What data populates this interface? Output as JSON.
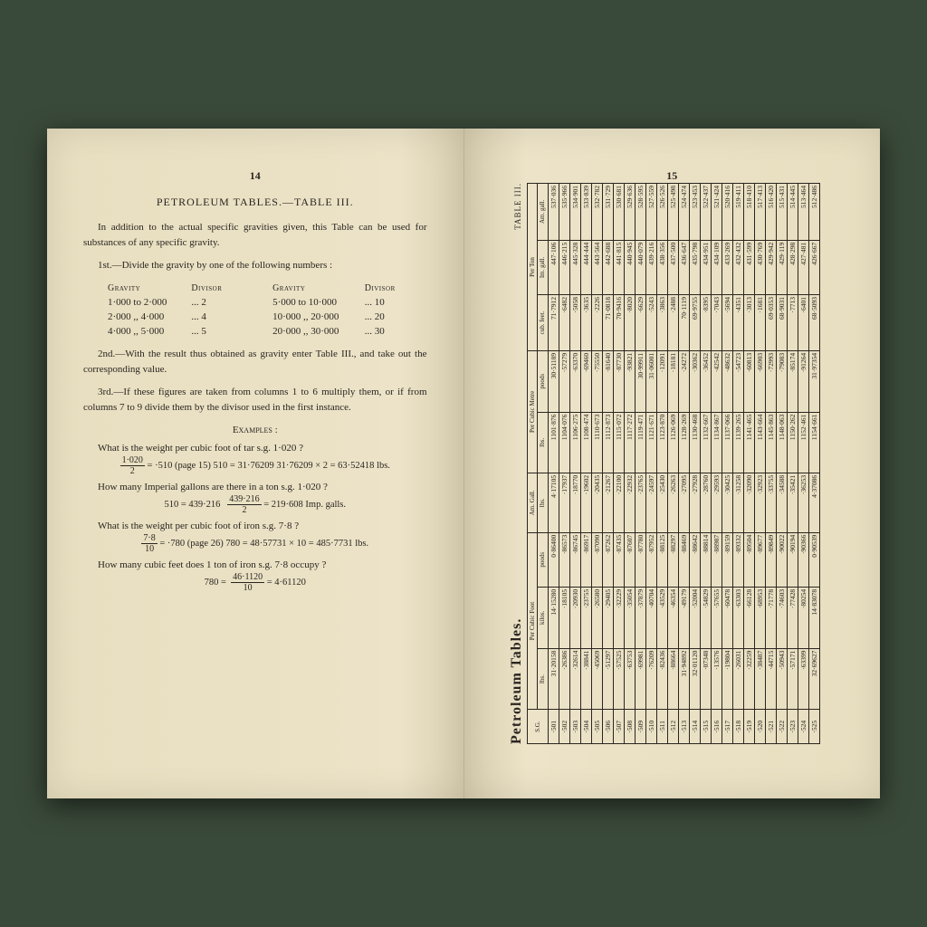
{
  "left_page": {
    "page_number": "14",
    "title": "PETROLEUM TABLES.—TABLE III.",
    "intro": "In addition to the actual specific gravities given, this Table can be used for substances of any specific gravity.",
    "step1": "1st.—Divide the gravity by one of the following numbers :",
    "divisor_head": {
      "g": "Gravity",
      "d": "Divisor"
    },
    "divisors": [
      {
        "g1": "1·000 to 2·000",
        "d1": "2",
        "g2": "5·000 to 10·000",
        "d2": "10"
      },
      {
        "g1": "2·000  ,,  4·000",
        "d1": "4",
        "g2": "10·000  ,,  20·000",
        "d2": "20"
      },
      {
        "g1": "4·000  ,,  5·000",
        "d1": "5",
        "g2": "20·000  ,,  30·000",
        "d2": "30"
      }
    ],
    "step2": "2nd.—With the result thus obtained as gravity enter Table III., and take out the corresponding value.",
    "step3": "3rd.—If these figures are taken from columns 1 to 6 multiply them, or if from columns 7 to 9 divide them by the divisor used in the first instance.",
    "examples_head": "Examples :",
    "ex1_q": "What is the weight per cubic foot of tar s.g. 1·020 ?",
    "ex1_calc": "= ·510 (page 15)   510 = 31·76209   31·76209 × 2 = 63·52418 lbs.",
    "ex1_frac_num": "1·020",
    "ex1_frac_den": "2",
    "ex2_q": "How many Imperial gallons are there in a ton s.g. 1·020 ?",
    "ex2_calc": "510 = 439·216",
    "ex2_frac_num": "439·216",
    "ex2_frac_den": "2",
    "ex2_result": "= 219·608 Imp. galls.",
    "ex3_q": "What is the weight per cubic foot of iron s.g. 7·8 ?",
    "ex3_frac_num": "7·8",
    "ex3_frac_den": "10",
    "ex3_calc": "= ·780   (page 26)   780 = 48·57731 × 10 = 485·7731 lbs.",
    "ex4_q": "How many cubic feet does 1 ton of iron s.g. 7·8 occupy ?",
    "ex4_calc": "780 =",
    "ex4_frac_num": "46·1120",
    "ex4_frac_den": "10",
    "ex4_result": "= 4·61120"
  },
  "right_page": {
    "page_number": "15",
    "table_title": "Petroleum Tables.",
    "table_sub": "TABLE III.",
    "headers_top": [
      "S.G.",
      "Per Cubic Foot",
      "Am. Gall.",
      "Per Cubic Metre",
      "Per Ton"
    ],
    "headers_sub": [
      "",
      "lbs.",
      "kilos.",
      "poods",
      "lbs.",
      "lbs.",
      "poods",
      "cub. feet.",
      "Im. gall.",
      "Am. gall."
    ],
    "rows": [
      [
        "·501",
        "31·20158",
        "14·15280",
        "0·86400",
        "4·17105",
        "1101·876",
        "30·51189",
        "71·7912",
        "447·106",
        "537·036"
      ],
      [
        "·502",
        "·26386",
        "·18105",
        "·86573",
        "·17937",
        "1104·076",
        "·57279",
        "·6482",
        "446·215",
        "535·966"
      ],
      [
        "·503",
        "·32614",
        "·20930",
        "·86745",
        "·18770",
        "1106·275",
        "·63370",
        "·5058",
        "445·328",
        "534·901"
      ],
      [
        "·504",
        "·38841",
        "·23755",
        "·86917",
        "·19602",
        "1108·474",
        "·69460",
        "·3635",
        "444·444",
        "533·839"
      ],
      [
        "·505",
        "·45069",
        "·26580",
        "·87090",
        "·20435",
        "1110·673",
        "·75550",
        "·2226",
        "443·564",
        "532·782"
      ],
      [
        "·506",
        "·51297",
        "·29405",
        "·87262",
        "·21267",
        "1112·873",
        "·81640",
        "71·0818",
        "442·688",
        "531·729"
      ],
      [
        "·507",
        "·57525",
        "·32229",
        "·87435",
        "·22100",
        "1115·072",
        "·87730",
        "70·9416",
        "441·815",
        "530·681"
      ],
      [
        "·508",
        "·63753",
        "·35054",
        "·87607",
        "·22932",
        "1117·272",
        "·93821",
        "·8020",
        "440·945",
        "529·636"
      ],
      [
        "·509",
        "·69981",
        "·37879",
        "·87780",
        "·23765",
        "1119·471",
        "30·99911",
        "·6629",
        "440·079",
        "528·595"
      ],
      [
        "·510",
        "·76209",
        "·40704",
        "·87952",
        "·24597",
        "1121·671",
        "31·06001",
        "·5243",
        "439·216",
        "527·559"
      ],
      [
        "·511",
        "·82436",
        "·43529",
        "·88125",
        "·25430",
        "1123·870",
        "·12091",
        "·3863",
        "438·356",
        "526·526"
      ],
      [
        "·512",
        "·88664",
        "·46354",
        "·88297",
        "·26263",
        "1126·069",
        "·18181",
        "·2488",
        "437·500",
        "525·498"
      ],
      [
        "·513",
        "31·94892",
        "·49179",
        "·88469",
        "·27095",
        "1128·269",
        "·24272",
        "70·1119",
        "436·647",
        "524·474"
      ],
      [
        "·514",
        "32·01120",
        "·52004",
        "·88642",
        "·27928",
        "1130·468",
        "·30362",
        "69·9755",
        "435·798",
        "523·453"
      ],
      [
        "·515",
        "·07348",
        "·54829",
        "·88814",
        "·28760",
        "1132·667",
        "·36452",
        "·8395",
        "434·951",
        "522·437"
      ],
      [
        "·516",
        "·13576",
        "·57655",
        "·88987",
        "·29593",
        "1134·867",
        "·42542",
        "·7043",
        "434·109",
        "521·424"
      ],
      [
        "·517",
        "·19804",
        "·60478",
        "·89159",
        "·30425",
        "1137·066",
        "·48632",
        "·5694",
        "433·269",
        "520·416"
      ],
      [
        "·518",
        "·26031",
        "·63303",
        "·89332",
        "·31258",
        "1139·265",
        "·54723",
        "·4351",
        "432·432",
        "519·411"
      ],
      [
        "·519",
        "·32259",
        "·66128",
        "·89504",
        "·32090",
        "1141·465",
        "·60813",
        "·3013",
        "431·599",
        "518·410"
      ],
      [
        "·520",
        "·38487",
        "·68953",
        "·89677",
        "·32923",
        "1143·664",
        "·66903",
        "·1681",
        "430·769",
        "517·413"
      ],
      [
        "·521",
        "·44715",
        "·71778",
        "·89849",
        "·33755",
        "1145·863",
        "·72993",
        "69·0353",
        "429·942",
        "516·420"
      ],
      [
        "·522",
        "·50943",
        "·74603",
        "·90022",
        "·34588",
        "1148·063",
        "·79083",
        "68·9031",
        "429·119",
        "515·431"
      ],
      [
        "·523",
        "·57171",
        "·77428",
        "·90194",
        "·35421",
        "1150·262",
        "·85174",
        "·7713",
        "428·298",
        "514·445"
      ],
      [
        "·524",
        "·63399",
        "·80254",
        "·90366",
        "·36253",
        "1152·461",
        "·91264",
        "·6401",
        "427·481",
        "513·464"
      ],
      [
        "·525",
        "32·69627",
        "14·83078",
        "0·90539",
        "4·37086",
        "1154·661",
        "31·97354",
        "68·5093",
        "426·667",
        "512·486"
      ]
    ]
  }
}
